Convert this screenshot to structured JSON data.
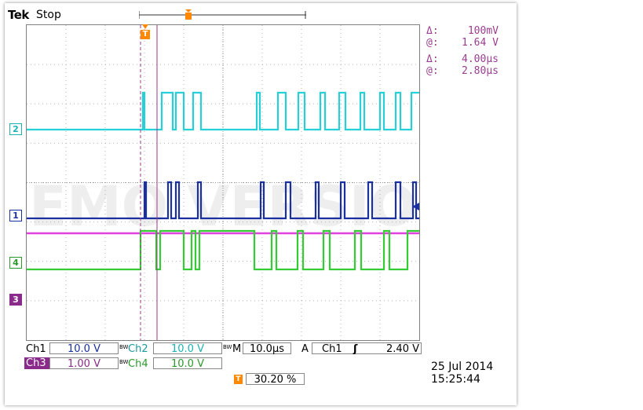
{
  "header": {
    "brand": "Tek",
    "status": "Stop"
  },
  "cursor_readout": {
    "v_delta_label": "Δ:",
    "v_delta": "100mV",
    "v_at_label": "@:",
    "v_at": "1.64 V",
    "t_delta_label": "Δ:",
    "t_delta": "4.00µs",
    "t_at_label": "@:",
    "t_at": "2.80µs"
  },
  "channel_markers": [
    {
      "label": "2",
      "color": "#1ab3b3"
    },
    {
      "label": "1",
      "color": "#1a2fa0"
    },
    {
      "label": "4",
      "color": "#2a9a2a"
    },
    {
      "label": "3",
      "color": "#8a2a8a"
    }
  ],
  "trigger_marker": "T",
  "watermark": "DEMO VERSION",
  "bottom": {
    "ch1_label": "Ch1",
    "ch1_scale": "10.0 V",
    "ch2_label": "Ch2",
    "ch2_scale": "10.0 V",
    "ch3_label": "Ch3",
    "ch3_scale": "1.00 V",
    "ch4_label": "Ch4",
    "ch4_scale": "10.0 V",
    "bw_label": "BW",
    "timebase_label": "M",
    "timebase": "10.0µs",
    "acq_label": "A",
    "trig_source": "Ch1",
    "trig_slope": "ʃ",
    "trig_level": "2.40 V",
    "trig_pos_icon": "T",
    "trig_pos": "30.20 %",
    "date": "25 Jul  2014",
    "time": "15:25:44"
  },
  "colors": {
    "ch1": "#1a2fa0",
    "ch2": "#26d0d8",
    "ch3": "#e040e0",
    "ch4": "#33cc33",
    "cursor": "#9a3d8e",
    "trigger": "#ff8800"
  }
}
